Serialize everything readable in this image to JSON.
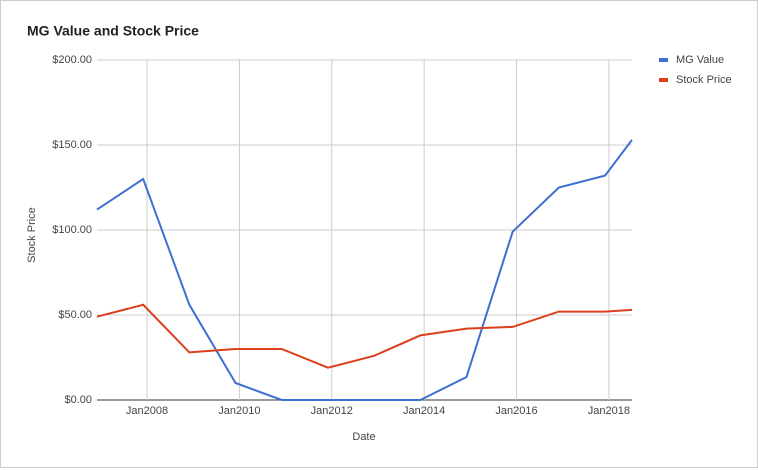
{
  "chart_data": {
    "type": "line",
    "title": "MG Value and Stock Price",
    "x_label": "Date",
    "y_label": "Stock Price",
    "x": [
      "2006-12",
      "2007-12",
      "2008-12",
      "2009-12",
      "2010-12",
      "2011-12",
      "2012-12",
      "2013-12",
      "2014-12",
      "2015-12",
      "2016-12",
      "2017-12",
      "2018-07"
    ],
    "series": [
      {
        "name": "MG Value",
        "color": "#3f6fd1",
        "values": [
          112,
          130,
          56,
          10,
          0,
          0,
          0,
          0,
          13.5,
          99,
          125,
          132,
          153
        ]
      },
      {
        "name": "Stock Price",
        "color": "#dc3f1c",
        "values": [
          49,
          56,
          28,
          30,
          30,
          19,
          26,
          38,
          42,
          43,
          52,
          52,
          53
        ]
      }
    ],
    "xlim": [
      "2006-12",
      "2018-07"
    ],
    "xticks": [
      {
        "value": "2008-01",
        "label": "Jan2008"
      },
      {
        "value": "2010-01",
        "label": "Jan2010"
      },
      {
        "value": "2012-01",
        "label": "Jan2012"
      },
      {
        "value": "2014-01",
        "label": "Jan2014"
      },
      {
        "value": "2016-01",
        "label": "Jan2016"
      },
      {
        "value": "2018-01",
        "label": "Jan2018"
      }
    ],
    "ylim": [
      0,
      200
    ],
    "yticks": [
      {
        "value": 0,
        "label": "$0.00"
      },
      {
        "value": 50,
        "label": "$50.00"
      },
      {
        "value": 100,
        "label": "$100.00"
      },
      {
        "value": 150,
        "label": "$150.00"
      },
      {
        "value": 200,
        "label": "$200.00"
      }
    ],
    "grid": true,
    "legend": "right"
  }
}
